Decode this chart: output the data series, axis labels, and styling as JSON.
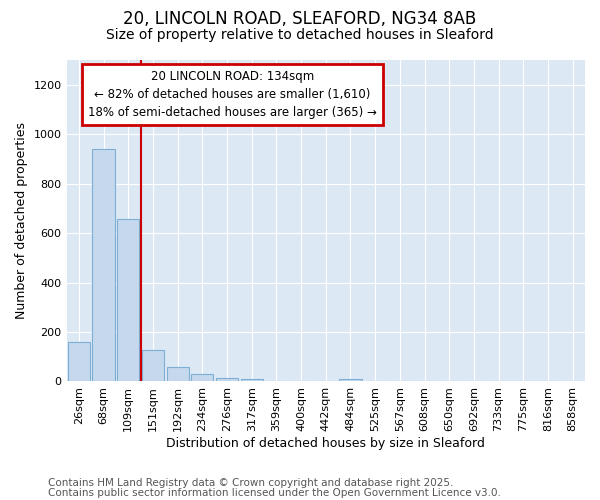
{
  "title_line1": "20, LINCOLN ROAD, SLEAFORD, NG34 8AB",
  "title_line2": "Size of property relative to detached houses in Sleaford",
  "xlabel": "Distribution of detached houses by size in Sleaford",
  "ylabel": "Number of detached properties",
  "categories": [
    "26sqm",
    "68sqm",
    "109sqm",
    "151sqm",
    "192sqm",
    "234sqm",
    "276sqm",
    "317sqm",
    "359sqm",
    "400sqm",
    "442sqm",
    "484sqm",
    "525sqm",
    "567sqm",
    "608sqm",
    "650sqm",
    "692sqm",
    "733sqm",
    "775sqm",
    "816sqm",
    "858sqm"
  ],
  "values": [
    160,
    940,
    655,
    128,
    60,
    30,
    15,
    8,
    0,
    0,
    0,
    10,
    0,
    0,
    0,
    0,
    0,
    0,
    0,
    0,
    0
  ],
  "bar_color": "#c5d8ed",
  "bar_edge_color": "#7dafd4",
  "vline_color": "#cc0000",
  "vline_x_index": 2.5,
  "annotation_text": "20 LINCOLN ROAD: 134sqm\n← 82% of detached houses are smaller (1,610)\n18% of semi-detached houses are larger (365) →",
  "annotation_box_color": "#cc0000",
  "ylim": [
    0,
    1300
  ],
  "yticks": [
    0,
    200,
    400,
    600,
    800,
    1000,
    1200
  ],
  "fig_bg_color": "#ffffff",
  "plot_bg_color": "#dde8f5",
  "grid_color": "#ffffff",
  "footer_line1": "Contains HM Land Registry data © Crown copyright and database right 2025.",
  "footer_line2": "Contains public sector information licensed under the Open Government Licence v3.0.",
  "title_fontsize": 12,
  "subtitle_fontsize": 10,
  "axis_label_fontsize": 9,
  "tick_fontsize": 8,
  "annotation_fontsize": 8.5,
  "footer_fontsize": 7.5
}
